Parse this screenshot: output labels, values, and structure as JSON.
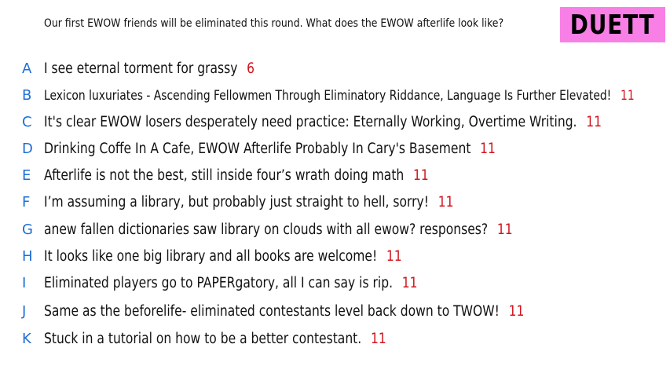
{
  "prompt": "Our first EWOW friends will be eliminated this round. What does the EWOW afterlife look like?",
  "mode_badge": "DUETT",
  "responses": [
    {
      "letter": "A",
      "text": "I see eternal torment for grassy",
      "word_count": "6"
    },
    {
      "letter": "B",
      "text": "Lexicon luxuriates - Ascending Fellowmen Through Eliminatory Riddance, Language Is Further Elevated!",
      "word_count": "11"
    },
    {
      "letter": "C",
      "text": "It's clear EWOW losers desperately need practice: Eternally Working, Overtime Writing.",
      "word_count": "11"
    },
    {
      "letter": "D",
      "text": "Drinking Coffe In A Cafe, EWOW Afterlife Probably In Cary's Basement",
      "word_count": "11"
    },
    {
      "letter": "E",
      "text": "Afterlife is not the best, still inside four’s wrath doing math",
      "word_count": "11"
    },
    {
      "letter": "F",
      "text": "I’m assuming a library, but probably just straight to hell, sorry!",
      "word_count": "11"
    },
    {
      "letter": "G",
      "text": "anew fallen dictionaries saw library on clouds with all ewow? responses?",
      "word_count": "11"
    },
    {
      "letter": "H",
      "text": "It looks like one big library and all books are welcome!",
      "word_count": "11"
    },
    {
      "letter": "I",
      "text": "Eliminated players go to PAPERgatory, all I can say is rip.",
      "word_count": "11"
    },
    {
      "letter": "J",
      "text": "Same as the beforelife- eliminated contestants level back down to TWOW!",
      "word_count": "11"
    },
    {
      "letter": "K",
      "text": "Stuck in a tutorial on how to be a better contestant.",
      "word_count": "11"
    }
  ],
  "colors": {
    "letter": "#1d6fd6",
    "word_count": "#d0151e",
    "badge_bg": "#f77fe6"
  }
}
